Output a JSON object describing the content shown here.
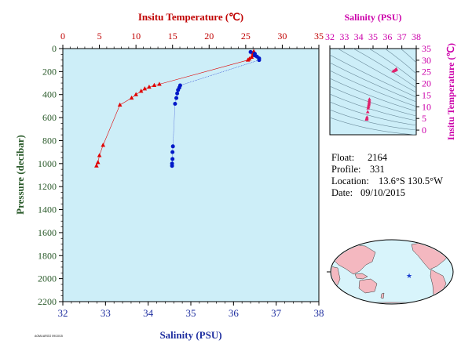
{
  "chart_data": [
    {
      "type": "scatter",
      "title": "",
      "top_axis": {
        "label": "Insitu Temperature (℃)",
        "range": [
          0,
          35
        ],
        "ticks": [
          0,
          5,
          10,
          15,
          20,
          25,
          30,
          35
        ]
      },
      "bottom_axis": {
        "label": "Salinity (PSU)",
        "range": [
          32,
          38
        ],
        "ticks": [
          32,
          33,
          34,
          35,
          36,
          37,
          38
        ]
      },
      "left_axis": {
        "label": "Pressure (decibar)",
        "range": [
          0,
          2200
        ],
        "inverted": true,
        "ticks": [
          0,
          200,
          400,
          600,
          800,
          1000,
          1200,
          1400,
          1600,
          1800,
          2000,
          2200
        ]
      },
      "background_color": "#cdeef8",
      "series": [
        {
          "name": "Temperature",
          "color": "#e00000",
          "marker": "triangle",
          "points": [
            {
              "t": 25.3,
              "p": 100
            },
            {
              "t": 25.5,
              "p": 90
            },
            {
              "t": 25.8,
              "p": 75
            },
            {
              "t": 26.0,
              "p": 60
            },
            {
              "t": 26.0,
              "p": 40
            },
            {
              "t": 26.1,
              "p": 25
            },
            {
              "t": 13.2,
              "p": 310
            },
            {
              "t": 12.5,
              "p": 320
            },
            {
              "t": 11.8,
              "p": 335
            },
            {
              "t": 11.2,
              "p": 350
            },
            {
              "t": 10.7,
              "p": 370
            },
            {
              "t": 10.0,
              "p": 400
            },
            {
              "t": 9.4,
              "p": 430
            },
            {
              "t": 7.8,
              "p": 490
            },
            {
              "t": 5.5,
              "p": 840
            },
            {
              "t": 5.0,
              "p": 930
            },
            {
              "t": 4.8,
              "p": 990
            },
            {
              "t": 4.6,
              "p": 1020
            }
          ]
        },
        {
          "name": "Salinity",
          "color": "#0018c8",
          "marker": "circle",
          "points": [
            {
              "s": 36.4,
              "p": 30
            },
            {
              "s": 36.5,
              "p": 45
            },
            {
              "s": 36.5,
              "p": 60
            },
            {
              "s": 36.55,
              "p": 70
            },
            {
              "s": 36.6,
              "p": 85
            },
            {
              "s": 36.6,
              "p": 100
            },
            {
              "s": 34.75,
              "p": 320
            },
            {
              "s": 34.73,
              "p": 340
            },
            {
              "s": 34.7,
              "p": 360
            },
            {
              "s": 34.68,
              "p": 390
            },
            {
              "s": 34.66,
              "p": 430
            },
            {
              "s": 34.63,
              "p": 480
            },
            {
              "s": 34.58,
              "p": 850
            },
            {
              "s": 34.57,
              "p": 900
            },
            {
              "s": 34.57,
              "p": 960
            },
            {
              "s": 34.56,
              "p": 1000
            },
            {
              "s": 34.56,
              "p": 1020
            }
          ]
        }
      ]
    },
    {
      "type": "scatter",
      "title": "",
      "top_axis": {
        "label": "Salinity (PSU)",
        "range": [
          32,
          38
        ],
        "ticks": [
          32,
          33,
          34,
          35,
          36,
          37,
          38
        ]
      },
      "right_axis": {
        "label": "Insitu Temperature (℃)",
        "range": [
          -2,
          35
        ],
        "ticks": [
          0,
          5,
          10,
          15,
          20,
          25,
          30,
          35
        ]
      },
      "color": "#e0206a",
      "points": [
        {
          "s": 34.56,
          "t": 4.6
        },
        {
          "s": 34.56,
          "t": 4.8
        },
        {
          "s": 34.57,
          "t": 5.0
        },
        {
          "s": 34.58,
          "t": 5.5
        },
        {
          "s": 34.63,
          "t": 7.8
        },
        {
          "s": 34.66,
          "t": 9.4
        },
        {
          "s": 34.68,
          "t": 10.0
        },
        {
          "s": 34.7,
          "t": 10.7
        },
        {
          "s": 34.72,
          "t": 11.2
        },
        {
          "s": 34.73,
          "t": 11.8
        },
        {
          "s": 34.74,
          "t": 12.5
        },
        {
          "s": 34.75,
          "t": 13.2
        },
        {
          "s": 36.4,
          "t": 25.3
        },
        {
          "s": 36.5,
          "t": 25.5
        },
        {
          "s": 36.55,
          "t": 25.8
        },
        {
          "s": 36.6,
          "t": 26.0
        },
        {
          "s": 36.62,
          "t": 26.1
        }
      ]
    }
  ],
  "info": {
    "float_label": "Float:",
    "float_value": "2164",
    "profile_label": "Profile:",
    "profile_value": "331",
    "location_label": "Location:",
    "location_value": "13.6°S  130.5°W",
    "date_label": "Date:",
    "date_value": "09/10/2015"
  },
  "map": {
    "marker": "★",
    "marker_color": "#1a3fd0",
    "ocean_color": "#d8f4fb",
    "land_color": "#f4b8c0"
  },
  "footer_stamp": "AOML/ARGO  09/10/15",
  "colors": {
    "temperature": "#e00000",
    "salinity": "#0018c8",
    "pressure_axis": "#2a5a2a",
    "ts_axes": "#cc00aa"
  }
}
